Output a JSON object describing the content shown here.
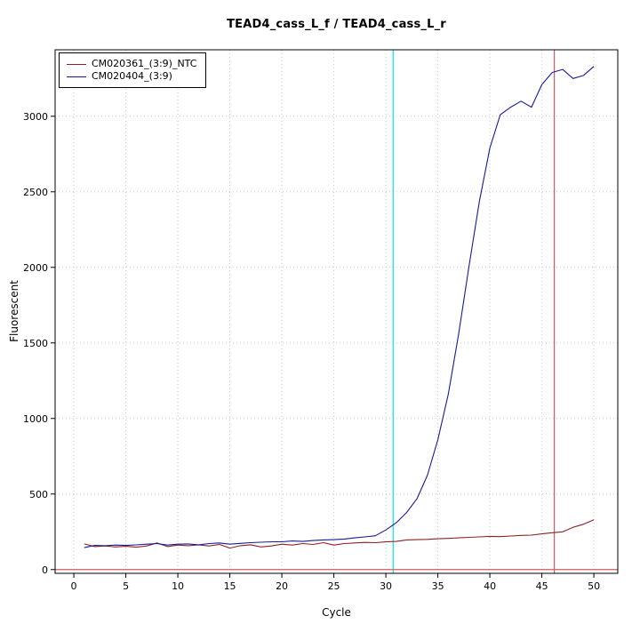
{
  "chart_data": {
    "type": "line",
    "title": "TEAD4_cass_L_f / TEAD4_cass_L_r",
    "xlabel": "Cycle",
    "ylabel": "Fluorescent",
    "xlim": [
      -1.8,
      52.3
    ],
    "ylim": [
      -25,
      3440
    ],
    "x_ticks": [
      0,
      5,
      10,
      15,
      20,
      25,
      30,
      35,
      40,
      45,
      50
    ],
    "y_ticks": [
      0,
      500,
      1000,
      1500,
      2000,
      2500,
      3000
    ],
    "grid": true,
    "grid_color": "#c8c8c8",
    "legend_position": "top-left",
    "x": [
      1,
      2,
      3,
      4,
      5,
      6,
      7,
      8,
      9,
      10,
      11,
      12,
      13,
      14,
      15,
      16,
      17,
      18,
      19,
      20,
      21,
      22,
      23,
      24,
      25,
      26,
      27,
      28,
      29,
      30,
      31,
      32,
      33,
      34,
      35,
      36,
      37,
      38,
      39,
      40,
      41,
      42,
      43,
      44,
      45,
      46,
      47,
      48,
      49,
      50
    ],
    "series": [
      {
        "name": "CM020361_(3:9)_NTC",
        "color": "#8b2323",
        "values": [
          170,
          152,
          156,
          150,
          154,
          148,
          156,
          176,
          152,
          162,
          158,
          163,
          156,
          166,
          142,
          158,
          164,
          150,
          156,
          168,
          162,
          172,
          166,
          178,
          162,
          172,
          176,
          180,
          178,
          183,
          186,
          196,
          198,
          200,
          204,
          206,
          210,
          213,
          216,
          220,
          218,
          222,
          226,
          228,
          236,
          244,
          250,
          280,
          300,
          330
        ]
      },
      {
        "name": "CM020404_(3:9)",
        "color": "#1a1a96",
        "values": [
          145,
          160,
          158,
          162,
          160,
          163,
          168,
          172,
          162,
          168,
          170,
          164,
          172,
          176,
          168,
          173,
          178,
          181,
          184,
          184,
          189,
          186,
          192,
          196,
          198,
          202,
          210,
          216,
          224,
          262,
          310,
          378,
          470,
          625,
          860,
          1160,
          1560,
          2010,
          2440,
          2790,
          3010,
          3060,
          3100,
          3060,
          3210,
          3290,
          3310,
          3250,
          3270,
          3330
        ]
      }
    ],
    "vlines": [
      {
        "x": 30.7,
        "color": "#00e5e5",
        "label": "threshold-cycle-marker"
      },
      {
        "x": 46.2,
        "color": "#cd5c5c",
        "label": "ntc-cycle-marker"
      }
    ],
    "hlines": [
      {
        "y": 0,
        "color": "#cd5c5c",
        "label": "baseline"
      }
    ]
  }
}
